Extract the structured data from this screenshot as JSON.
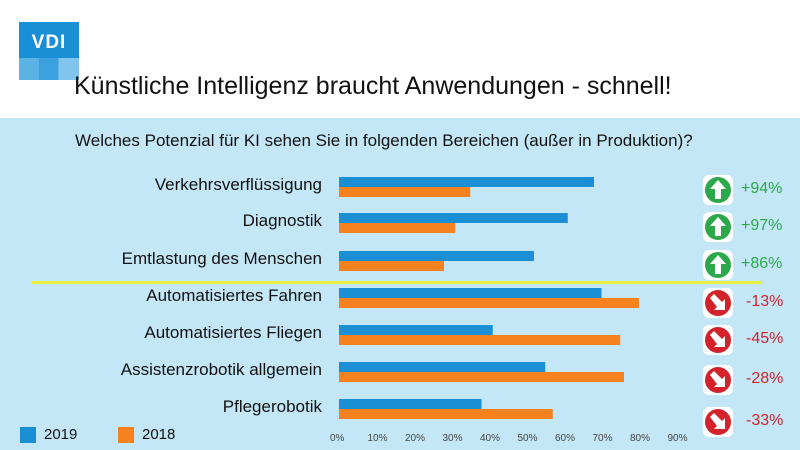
{
  "header": {
    "logo_text": "VDI",
    "title": "Künstliche Intelligenz braucht Anwendungen - schnell!"
  },
  "question": "Welches Potenzial für KI sehen Sie in folgenden Bereichen (außer in Produktion)?",
  "colors": {
    "2019": "#1b8fd6",
    "2018": "#f5821f",
    "up": "#2aa84a",
    "down": "#d3222a",
    "panel": "#c4e7f7",
    "divider": "#e6f03c"
  },
  "legend": [
    {
      "label": "2019"
    },
    {
      "label": "2018"
    }
  ],
  "changes": [
    {
      "text": "+94%",
      "direction": "up"
    },
    {
      "text": "+97%",
      "direction": "up"
    },
    {
      "text": "+86%",
      "direction": "up"
    },
    {
      "text": "-13%",
      "direction": "down"
    },
    {
      "text": "-45%",
      "direction": "down"
    },
    {
      "text": "-28%",
      "direction": "down"
    },
    {
      "text": "-33%",
      "direction": "down"
    }
  ],
  "chart_data": {
    "type": "bar",
    "orientation": "horizontal",
    "categories": [
      "Verkehrsverflüssigung",
      "Diagnostik",
      "Emtlastung des Menschen",
      "Automatisiertes Fahren",
      "Automatisiertes Fliegen",
      "Assistenzrobotik allgemein",
      "Pflegerobotik"
    ],
    "series": [
      {
        "name": "2019",
        "values": [
          68,
          61,
          52,
          70,
          41,
          55,
          38
        ]
      },
      {
        "name": "2018",
        "values": [
          35,
          31,
          28,
          80,
          75,
          76,
          57
        ]
      }
    ],
    "xlim": [
      0,
      90
    ],
    "xticks": [
      "0%",
      "10%",
      "20%",
      "30%",
      "40%",
      "50%",
      "60%",
      "70%",
      "80%",
      "90%"
    ],
    "legend": "bottom-left",
    "grid": false
  }
}
